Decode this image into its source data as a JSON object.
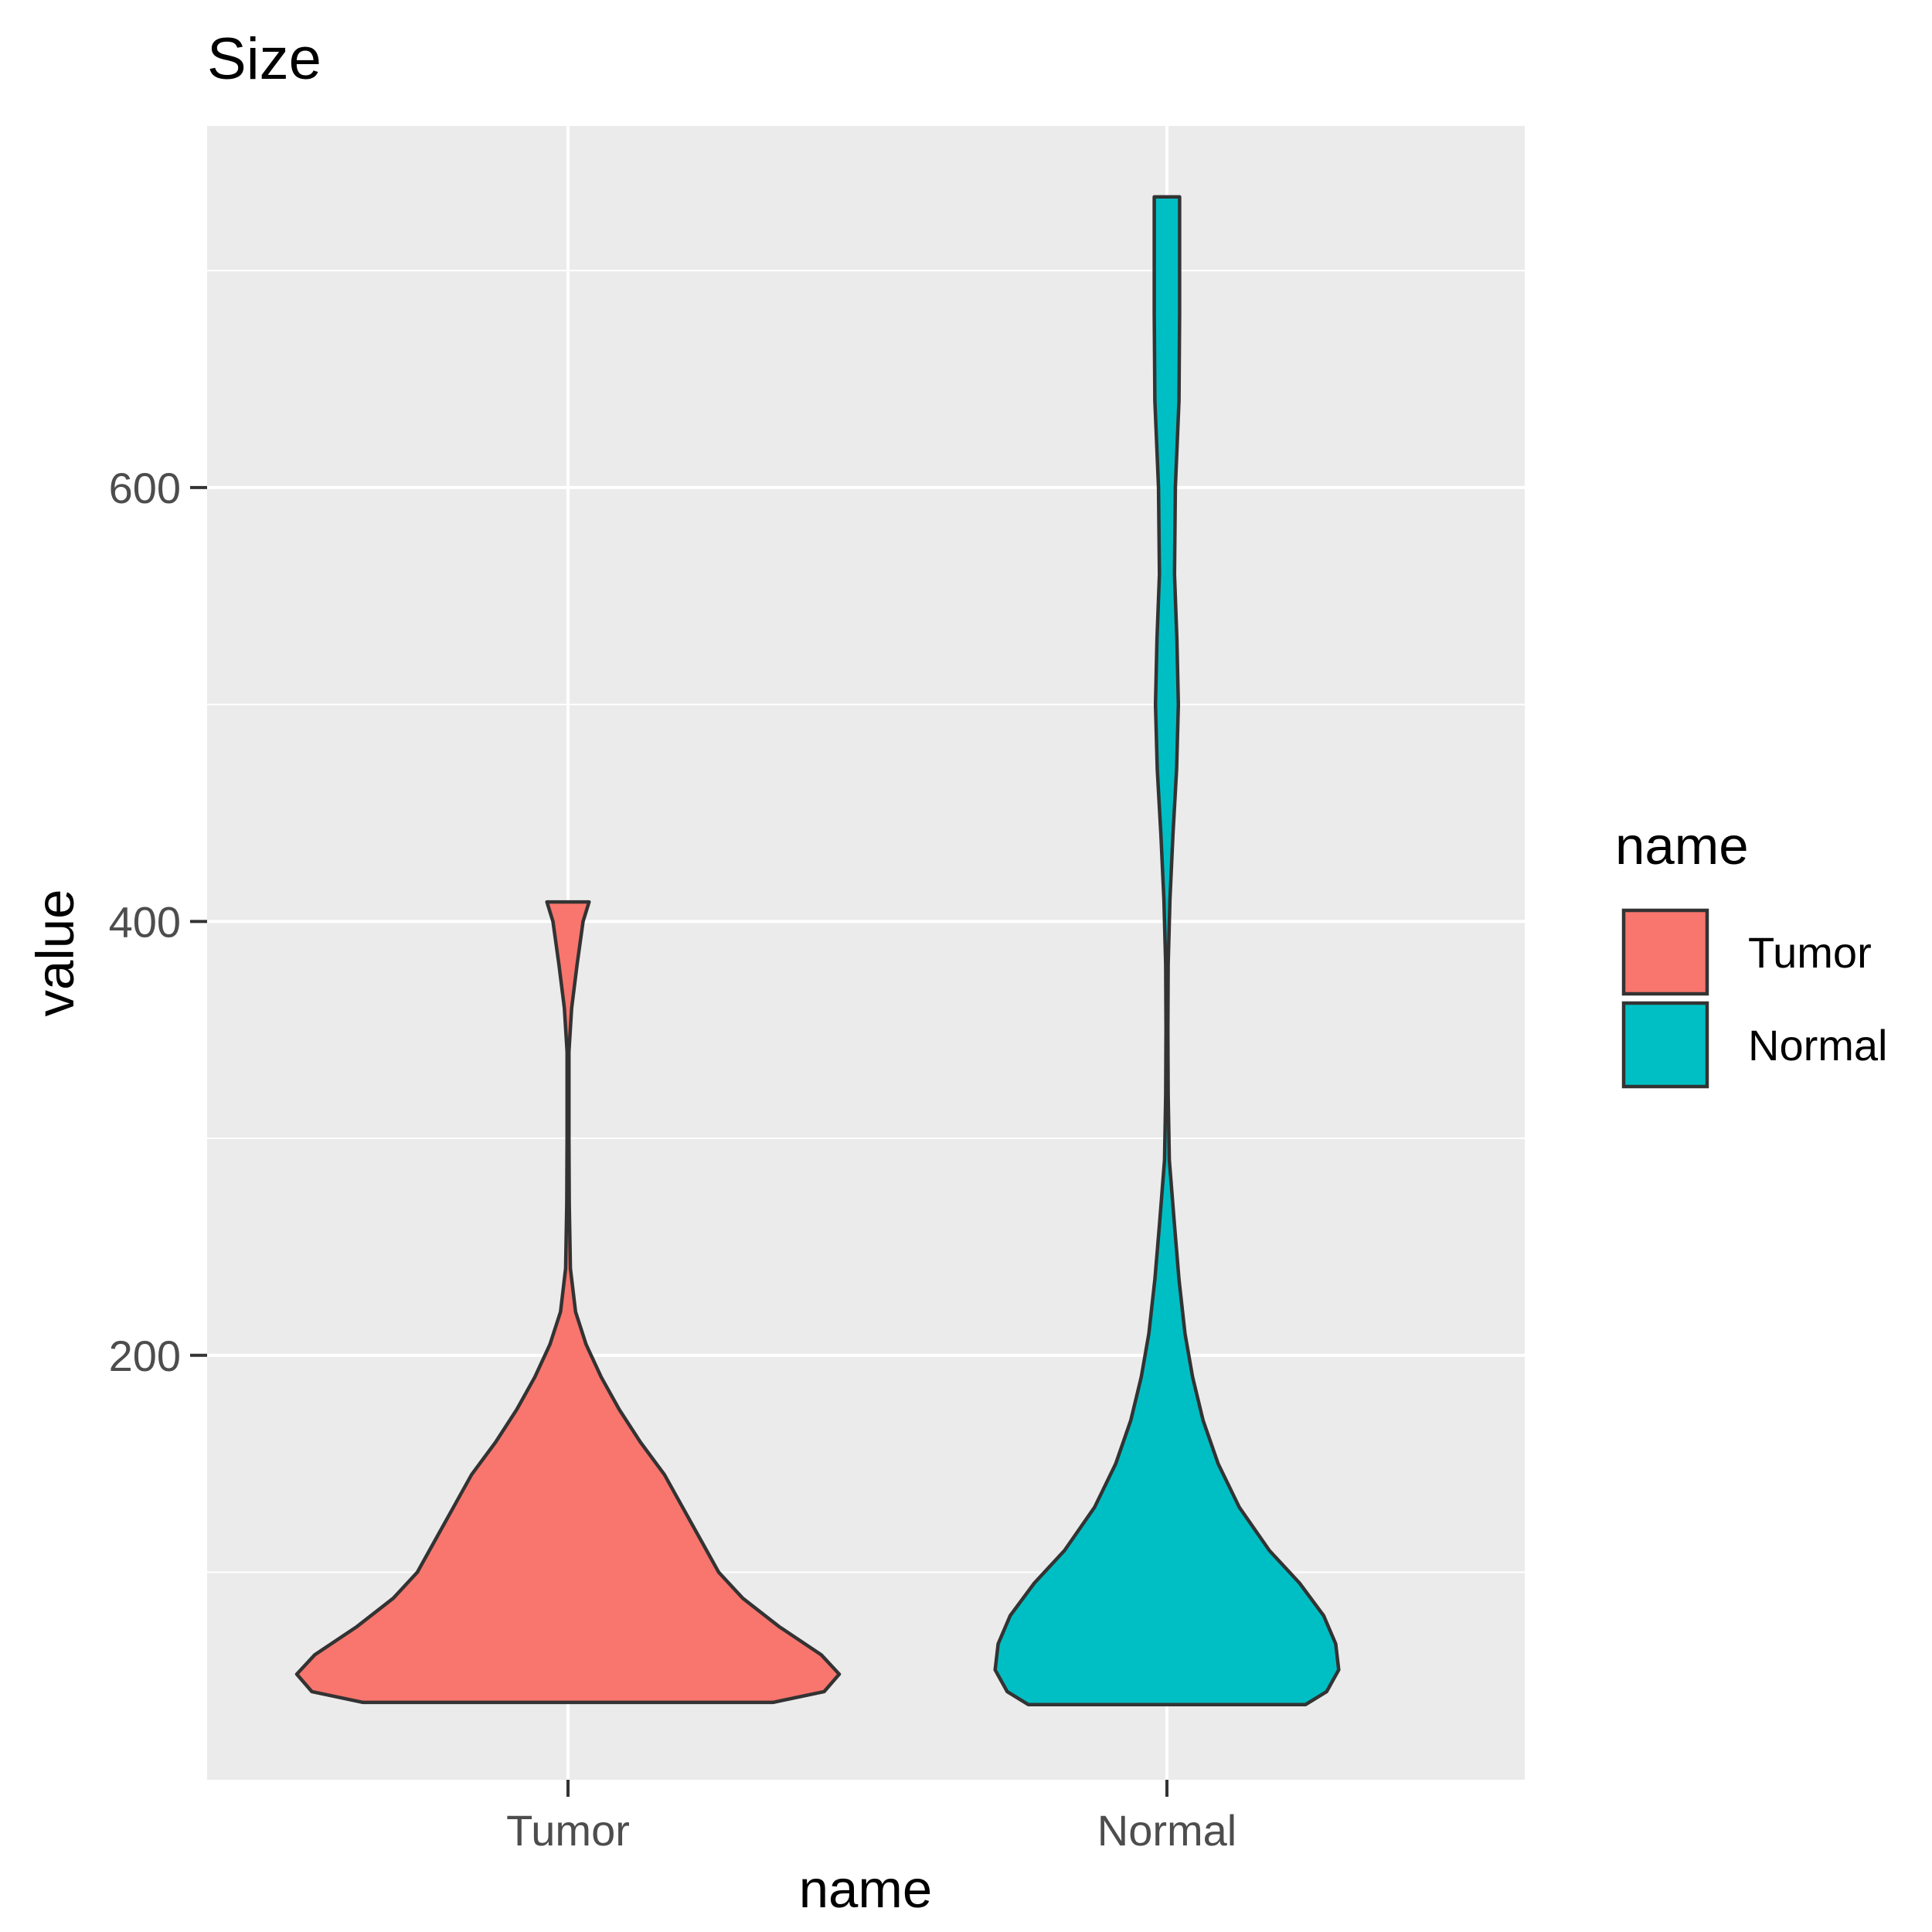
{
  "chart_data": {
    "type": "violin",
    "title": "Size",
    "xlabel": "name",
    "ylabel": "value",
    "categories": [
      "Tumor",
      "Normal"
    ],
    "ylim": [
      0,
      760
    ],
    "y_ticks": [
      200,
      400,
      600
    ],
    "grid": true,
    "legend": {
      "title": "name",
      "position": "right",
      "entries": [
        {
          "label": "Tumor",
          "color": "#F8766D"
        },
        {
          "label": "Normal",
          "color": "#00BFC4"
        }
      ]
    },
    "series": [
      {
        "name": "Tumor",
        "color": "#F8766D",
        "ymin": 40,
        "ymax": 409,
        "density": [
          {
            "y": 40,
            "w": 0.68
          },
          {
            "y": 45,
            "w": 0.85
          },
          {
            "y": 53,
            "w": 0.9
          },
          {
            "y": 62,
            "w": 0.84
          },
          {
            "y": 75,
            "w": 0.7
          },
          {
            "y": 88,
            "w": 0.58
          },
          {
            "y": 100,
            "w": 0.5
          },
          {
            "y": 115,
            "w": 0.44
          },
          {
            "y": 130,
            "w": 0.38
          },
          {
            "y": 145,
            "w": 0.32
          },
          {
            "y": 160,
            "w": 0.24
          },
          {
            "y": 175,
            "w": 0.17
          },
          {
            "y": 190,
            "w": 0.11
          },
          {
            "y": 205,
            "w": 0.06
          },
          {
            "y": 220,
            "w": 0.025
          },
          {
            "y": 240,
            "w": 0.008
          },
          {
            "y": 270,
            "w": 0.004
          },
          {
            "y": 300,
            "w": 0.003
          },
          {
            "y": 340,
            "w": 0.003
          },
          {
            "y": 360,
            "w": 0.012
          },
          {
            "y": 380,
            "w": 0.03
          },
          {
            "y": 400,
            "w": 0.05
          },
          {
            "y": 409,
            "w": 0.07
          }
        ]
      },
      {
        "name": "Normal",
        "color": "#00BFC4",
        "ymin": 39,
        "ymax": 734,
        "density": [
          {
            "y": 39,
            "w": 0.46
          },
          {
            "y": 45,
            "w": 0.53
          },
          {
            "y": 55,
            "w": 0.57
          },
          {
            "y": 67,
            "w": 0.56
          },
          {
            "y": 80,
            "w": 0.52
          },
          {
            "y": 95,
            "w": 0.44
          },
          {
            "y": 110,
            "w": 0.34
          },
          {
            "y": 130,
            "w": 0.24
          },
          {
            "y": 150,
            "w": 0.17
          },
          {
            "y": 170,
            "w": 0.12
          },
          {
            "y": 190,
            "w": 0.085
          },
          {
            "y": 210,
            "w": 0.06
          },
          {
            "y": 235,
            "w": 0.04
          },
          {
            "y": 260,
            "w": 0.025
          },
          {
            "y": 290,
            "w": 0.008
          },
          {
            "y": 320,
            "w": 0.004
          },
          {
            "y": 350,
            "w": 0.003
          },
          {
            "y": 380,
            "w": 0.004
          },
          {
            "y": 410,
            "w": 0.01
          },
          {
            "y": 440,
            "w": 0.02
          },
          {
            "y": 470,
            "w": 0.032
          },
          {
            "y": 500,
            "w": 0.038
          },
          {
            "y": 530,
            "w": 0.033
          },
          {
            "y": 560,
            "w": 0.025
          },
          {
            "y": 600,
            "w": 0.028
          },
          {
            "y": 640,
            "w": 0.04
          },
          {
            "y": 680,
            "w": 0.042
          },
          {
            "y": 734,
            "w": 0.042
          }
        ]
      }
    ]
  }
}
